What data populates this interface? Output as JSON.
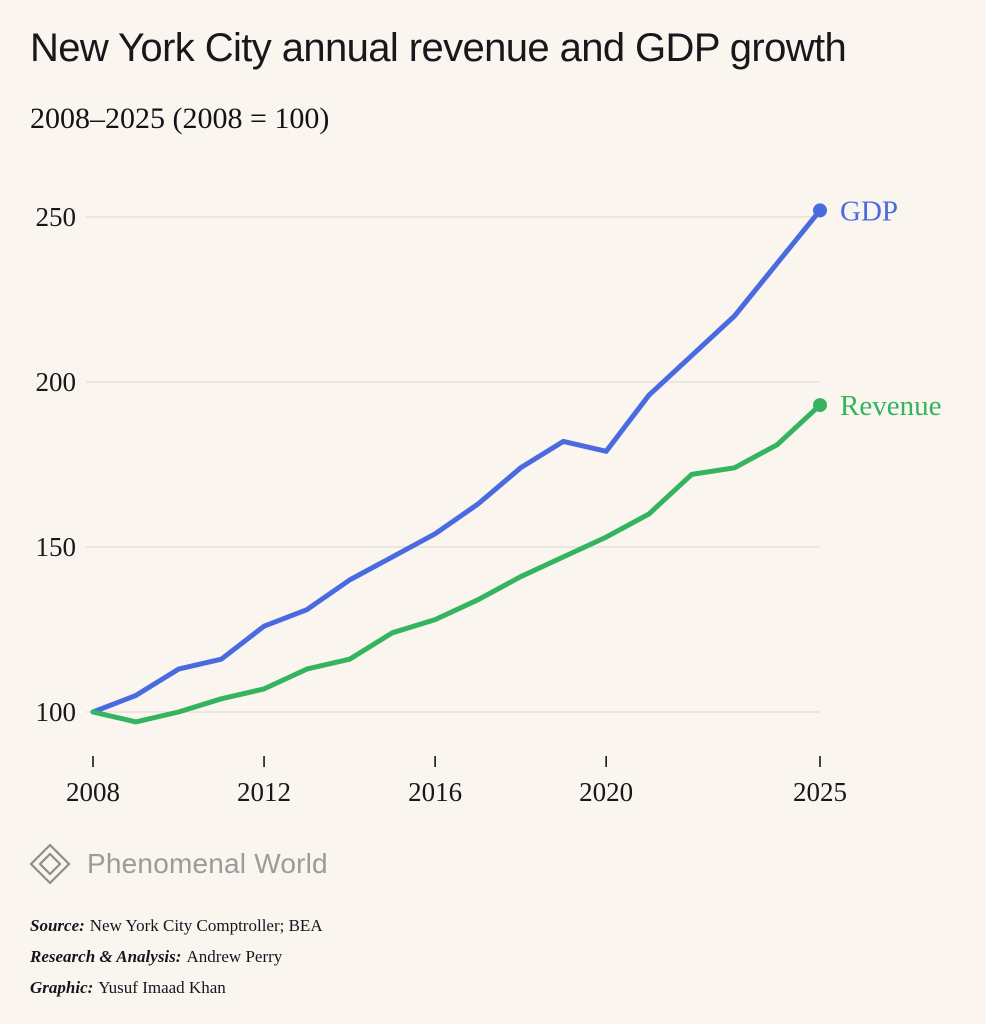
{
  "header": {
    "title": "New York City annual revenue and GDP growth",
    "subtitle": "2008–2025 (2008 = 100)"
  },
  "chart_data": {
    "type": "line",
    "x": [
      2008,
      2009,
      2010,
      2011,
      2012,
      2013,
      2014,
      2015,
      2016,
      2017,
      2018,
      2019,
      2020,
      2021,
      2022,
      2023,
      2024,
      2025
    ],
    "series": [
      {
        "name": "GDP",
        "color": "#4a6be0",
        "values": [
          100,
          105,
          113,
          116,
          126,
          131,
          140,
          147,
          154,
          163,
          174,
          182,
          179,
          196,
          208,
          220,
          236,
          252
        ]
      },
      {
        "name": "Revenue",
        "color": "#34b45e",
        "values": [
          100,
          97,
          100,
          104,
          107,
          113,
          116,
          124,
          128,
          134,
          141,
          147,
          153,
          160,
          172,
          174,
          181,
          193
        ]
      }
    ],
    "title": "New York City annual revenue and GDP growth",
    "subtitle": "2008–2025 (2008 = 100)",
    "xlabel": "",
    "ylabel": "",
    "yticks": [
      100,
      150,
      200,
      250
    ],
    "xticks": [
      2008,
      2012,
      2016,
      2020,
      2025
    ],
    "ylim": [
      95,
      258
    ],
    "grid": "horizontal",
    "legend_position": "end-of-line",
    "grid_color": "#e2ddd5",
    "tick_color": "#17171c"
  },
  "branding": {
    "logo_text": "Phenomenal World"
  },
  "credits": [
    {
      "label": "Source:",
      "text": "New York City Comptroller; BEA"
    },
    {
      "label": "Research & Analysis:",
      "text": "Andrew Perry"
    },
    {
      "label": "Graphic:",
      "text": "Yusuf Imaad Khan"
    }
  ]
}
